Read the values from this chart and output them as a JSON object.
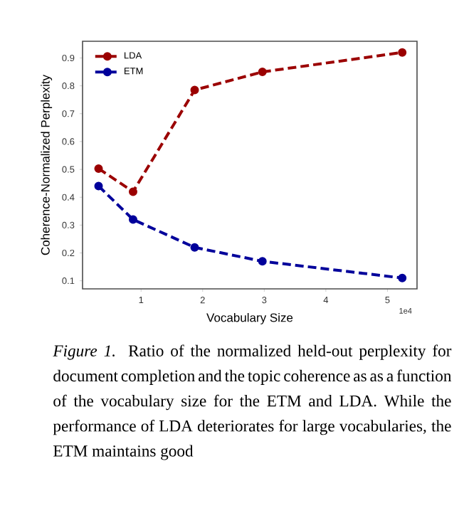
{
  "chart_data": {
    "type": "line",
    "xlabel": "Vocabulary Size",
    "ylabel": "Coherence-Normalized Perplexity",
    "x": [
      0.31,
      0.87,
      1.87,
      2.97,
      5.24
    ],
    "series": [
      {
        "name": "LDA",
        "color": "#9b0000",
        "values": [
          0.503,
          0.42,
          0.785,
          0.85,
          0.92
        ]
      },
      {
        "name": "ETM",
        "color": "#00009b",
        "values": [
          0.44,
          0.32,
          0.22,
          0.17,
          0.11
        ]
      }
    ],
    "xlim": [
      0.05,
      5.48
    ],
    "ylim": [
      0.071,
      0.96
    ],
    "xticks": [
      1,
      2,
      3,
      4,
      5
    ],
    "yticks": [
      0.1,
      0.2,
      0.3,
      0.4,
      0.5,
      0.6,
      0.7,
      0.8,
      0.9
    ],
    "marker": "circle",
    "line_style": "dashed",
    "legend": "top left",
    "grid": false,
    "annotations": [
      "1e4",
      "*Figure 1.* Ratio of the normalized held-out perplexity for document completion and the topic coherence as as a function of the vocabulary size for the ETM and LDA. While the performance of LDA deteriorates for large vocabularies, the ETM maintains good"
    ]
  }
}
